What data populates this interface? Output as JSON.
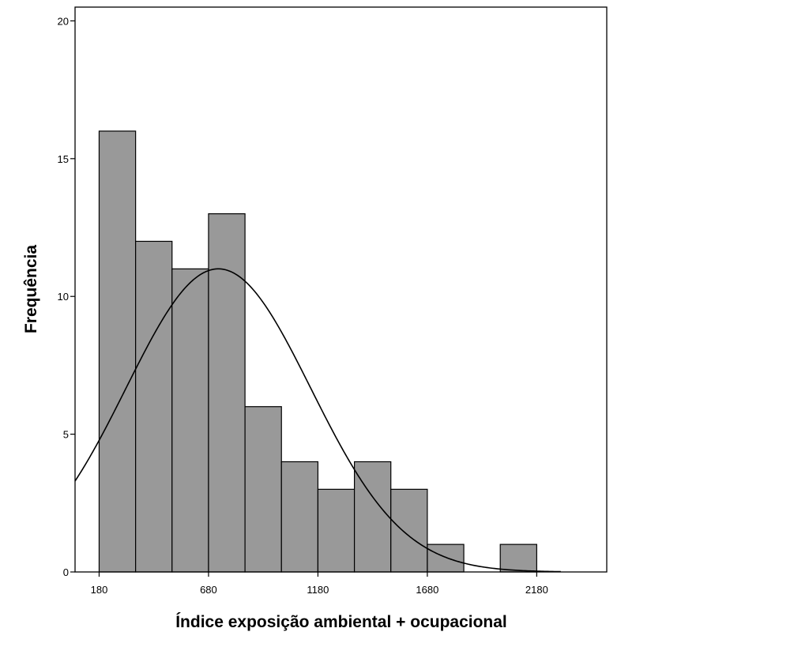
{
  "chart_data": {
    "type": "bar",
    "subtype": "histogram-with-normal-curve",
    "title": "",
    "xlabel": "Índice exposição ambiental + ocupacional",
    "ylabel": "Frequência",
    "xlim": [
      70,
      2500
    ],
    "ylim": [
      0,
      20.5
    ],
    "x_ticks": [
      180,
      680,
      1180,
      1680,
      2180
    ],
    "y_ticks": [
      0,
      5,
      10,
      15,
      20
    ],
    "bin_width": 166.7,
    "bins": [
      {
        "start": 180,
        "end": 346.7,
        "count": 16
      },
      {
        "start": 346.7,
        "end": 513.3,
        "count": 12
      },
      {
        "start": 513.3,
        "end": 680,
        "count": 11
      },
      {
        "start": 680,
        "end": 846.7,
        "count": 13
      },
      {
        "start": 846.7,
        "end": 1013.3,
        "count": 6
      },
      {
        "start": 1013.3,
        "end": 1180,
        "count": 4
      },
      {
        "start": 1180,
        "end": 1346.7,
        "count": 3
      },
      {
        "start": 1346.7,
        "end": 1513.3,
        "count": 4
      },
      {
        "start": 1513.3,
        "end": 1680,
        "count": 3
      },
      {
        "start": 1680,
        "end": 1846.7,
        "count": 1
      },
      {
        "start": 2013.3,
        "end": 2180,
        "count": 1
      }
    ],
    "normal_curve": {
      "mean": 725,
      "sd": 422,
      "peak": 11.0
    },
    "bar_color": "#999999",
    "grid": false,
    "legend": "none"
  }
}
